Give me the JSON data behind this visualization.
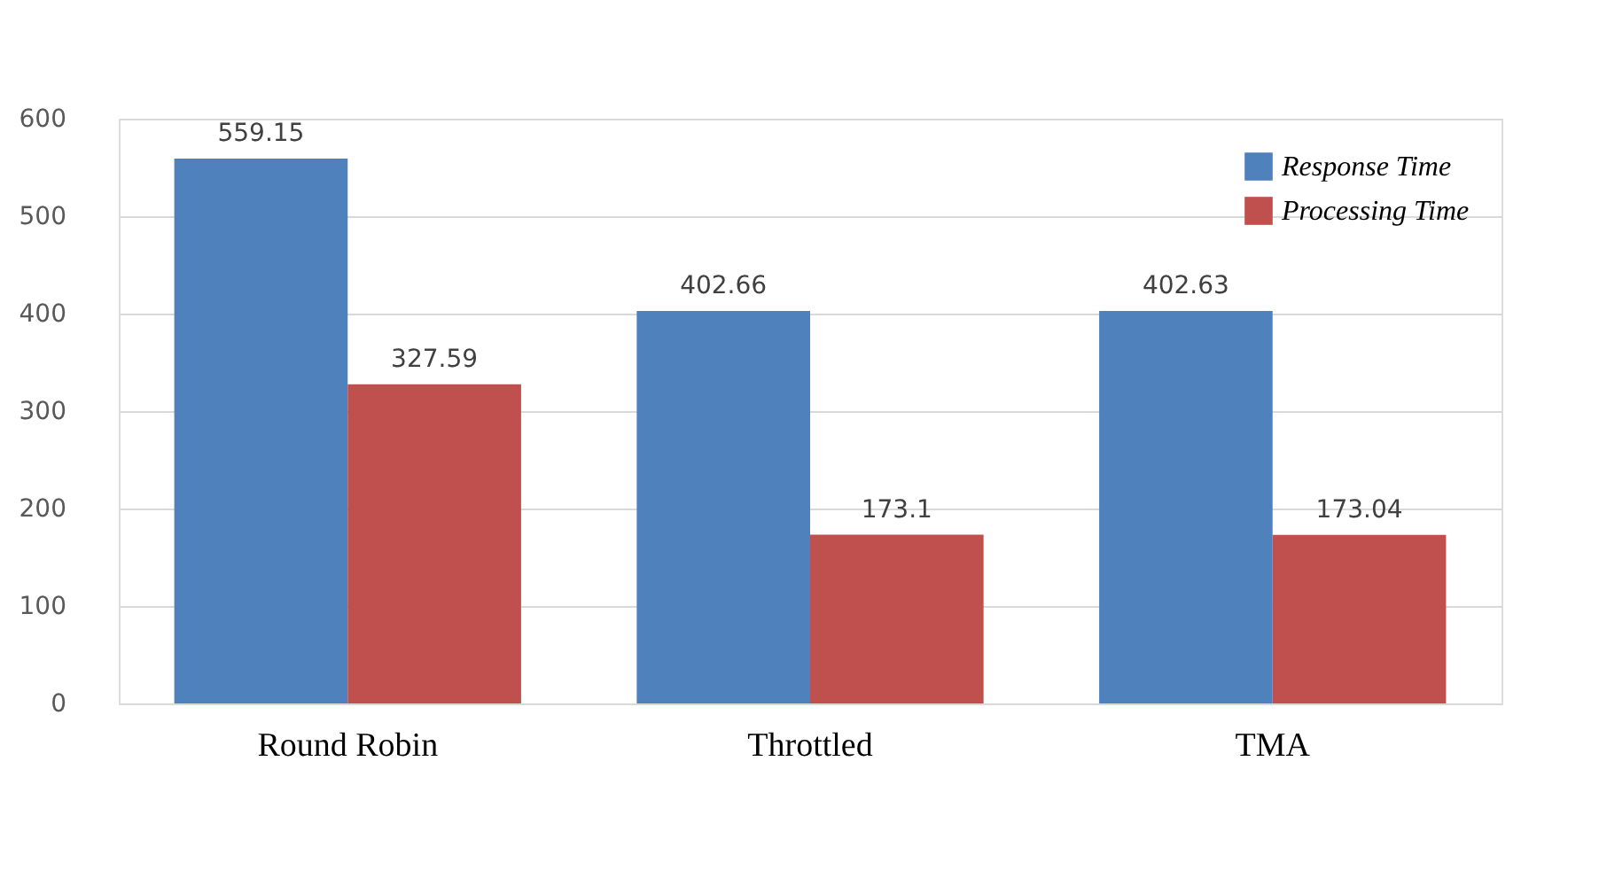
{
  "chart_data": {
    "type": "bar",
    "categories": [
      "Round Robin",
      "Throttled",
      "TMA"
    ],
    "series": [
      {
        "name": "Response Time",
        "color": "#4f81bd",
        "values": [
          559.15,
          402.66,
          402.63
        ]
      },
      {
        "name": "Processing Time",
        "color": "#c0504d",
        "values": [
          327.59,
          173.1,
          173.04
        ]
      }
    ],
    "ylim": [
      0,
      600
    ],
    "yticks": [
      0,
      100,
      200,
      300,
      400,
      500,
      600
    ],
    "grid": "y",
    "legend": "top right",
    "data_labels": true
  }
}
